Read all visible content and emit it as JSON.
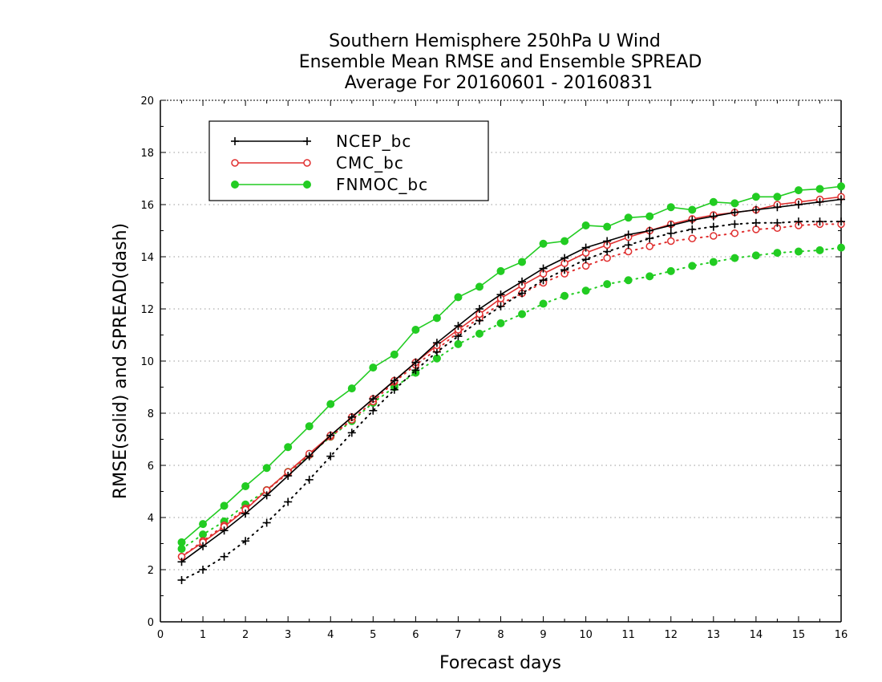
{
  "colors": {
    "ncep": "#000000",
    "cmc": "#e03030",
    "fnmoc": "#22cc22",
    "grid": "#999999"
  },
  "chart_data": {
    "type": "line",
    "title_lines": [
      "Southern Hemisphere 250hPa U Wind",
      "Ensemble Mean RMSE and Ensemble SPREAD",
      "Average For 20160601 - 20160831"
    ],
    "xlabel": "Forecast days",
    "ylabel": "RMSE(solid) and SPREAD(dash)",
    "xlim": [
      0,
      16
    ],
    "ylim": [
      0,
      20
    ],
    "x_ticks": [
      0,
      1,
      2,
      3,
      4,
      5,
      6,
      7,
      8,
      9,
      10,
      11,
      12,
      13,
      14,
      15,
      16
    ],
    "y_ticks": [
      0,
      2,
      4,
      6,
      8,
      10,
      12,
      14,
      16,
      18,
      20
    ],
    "grid": "horizontal dotted",
    "legend_position": "top-left",
    "x": [
      0.5,
      1,
      1.5,
      2,
      2.5,
      3,
      3.5,
      4,
      4.5,
      5,
      5.5,
      6,
      6.5,
      7,
      7.5,
      8,
      8.5,
      9,
      9.5,
      10,
      10.5,
      11,
      11.5,
      12,
      12.5,
      13,
      13.5,
      14,
      14.5,
      15,
      15.5,
      16
    ],
    "series": [
      {
        "name": "NCEP_bc",
        "color_key": "ncep",
        "marker": "plus",
        "rmse": [
          2.3,
          2.9,
          3.5,
          4.15,
          4.85,
          5.6,
          6.35,
          7.15,
          7.85,
          8.55,
          9.25,
          9.95,
          10.7,
          11.35,
          12.0,
          12.55,
          13.05,
          13.55,
          13.95,
          14.35,
          14.6,
          14.85,
          15.0,
          15.2,
          15.4,
          15.55,
          15.7,
          15.8,
          15.9,
          16.0,
          16.1,
          16.2
        ],
        "spread": [
          1.6,
          2.0,
          2.5,
          3.1,
          3.8,
          4.6,
          5.45,
          6.35,
          7.25,
          8.1,
          8.9,
          9.65,
          10.35,
          10.95,
          11.55,
          12.1,
          12.6,
          13.1,
          13.5,
          13.9,
          14.2,
          14.45,
          14.7,
          14.9,
          15.05,
          15.15,
          15.25,
          15.3,
          15.3,
          15.35,
          15.35,
          15.35
        ]
      },
      {
        "name": "CMC_bc",
        "color_key": "cmc",
        "marker": "open-circle",
        "rmse": [
          2.5,
          3.05,
          3.65,
          4.3,
          5.05,
          5.75,
          6.45,
          7.15,
          7.85,
          8.55,
          9.25,
          9.95,
          10.6,
          11.2,
          11.8,
          12.4,
          12.9,
          13.35,
          13.75,
          14.15,
          14.45,
          14.75,
          15.0,
          15.25,
          15.45,
          15.6,
          15.7,
          15.8,
          16.0,
          16.1,
          16.2,
          16.3
        ],
        "spread": [
          2.5,
          3.1,
          3.7,
          4.35,
          5.05,
          5.7,
          6.4,
          7.1,
          7.75,
          8.45,
          9.2,
          9.85,
          10.45,
          11.1,
          11.65,
          12.2,
          12.6,
          13.0,
          13.35,
          13.65,
          13.95,
          14.2,
          14.4,
          14.6,
          14.7,
          14.8,
          14.9,
          15.05,
          15.1,
          15.2,
          15.25,
          15.25
        ]
      },
      {
        "name": "FNMOC_bc",
        "color_key": "fnmoc",
        "marker": "filled-circle",
        "rmse": [
          3.05,
          3.75,
          4.45,
          5.2,
          5.9,
          6.7,
          7.5,
          8.35,
          8.95,
          9.75,
          10.25,
          11.2,
          11.65,
          12.45,
          12.85,
          13.45,
          13.8,
          14.5,
          14.6,
          15.2,
          15.15,
          15.5,
          15.55,
          15.9,
          15.8,
          16.1,
          16.05,
          16.3,
          16.3,
          16.55,
          16.6,
          16.7
        ],
        "spread": [
          2.8,
          3.35,
          3.85,
          4.5,
          5.05,
          5.75,
          6.4,
          7.1,
          7.7,
          8.4,
          9.0,
          9.55,
          10.1,
          10.65,
          11.05,
          11.45,
          11.8,
          12.2,
          12.5,
          12.7,
          12.95,
          13.1,
          13.25,
          13.45,
          13.65,
          13.8,
          13.95,
          14.05,
          14.15,
          14.2,
          14.25,
          14.35
        ]
      }
    ]
  }
}
